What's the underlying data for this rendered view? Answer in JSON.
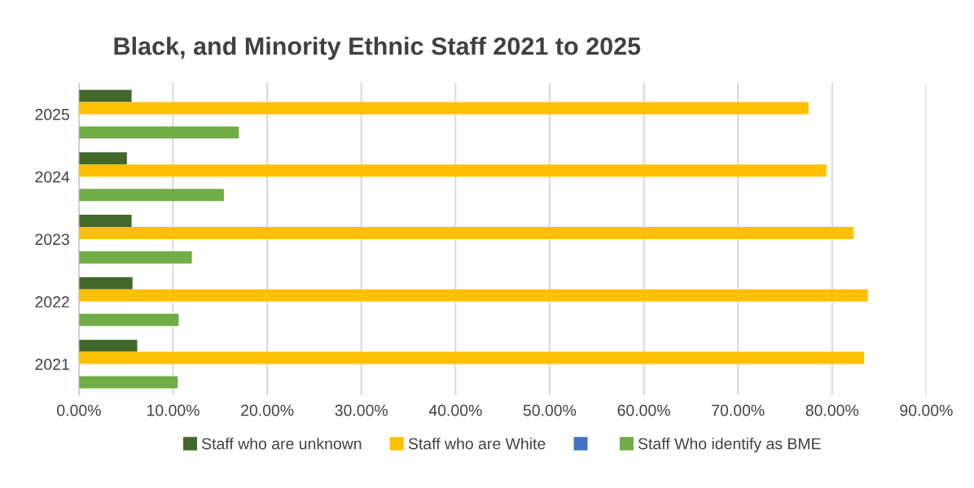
{
  "chart_data": {
    "type": "bar",
    "orientation": "horizontal",
    "title": "Black, and Minority Ethnic Staff 2021 to 2025",
    "categories": [
      "2025",
      "2024",
      "2023",
      "2022",
      "2021"
    ],
    "series": [
      {
        "name": "Staff who are unknown",
        "color": "#43682b",
        "values": [
          5.6,
          5.1,
          5.6,
          5.7,
          6.2
        ]
      },
      {
        "name": "Staff who are White",
        "color": "#ffc000",
        "values": [
          77.5,
          79.4,
          82.3,
          83.8,
          83.4
        ]
      },
      {
        "color": "#4472c4",
        "values": [
          null,
          null,
          null,
          null,
          null
        ]
      },
      {
        "name": "Staff Who identify as BME",
        "color": "#70ad47",
        "values": [
          17.0,
          15.4,
          12.0,
          10.6,
          10.5
        ]
      }
    ],
    "xlim": [
      0,
      90
    ],
    "xticks": [
      {
        "value": 0,
        "label": "0.00%"
      },
      {
        "value": 10,
        "label": "10.00%"
      },
      {
        "value": 20,
        "label": "20.00%"
      },
      {
        "value": 30,
        "label": "30.00%"
      },
      {
        "value": 40,
        "label": "40.00%"
      },
      {
        "value": 50,
        "label": "50.00%"
      },
      {
        "value": 60,
        "label": "60.00%"
      },
      {
        "value": 70,
        "label": "70.00%"
      },
      {
        "value": 80,
        "label": "80.00%"
      },
      {
        "value": 90,
        "label": "90.00%"
      }
    ],
    "grid": "x",
    "legend": "bottom"
  }
}
